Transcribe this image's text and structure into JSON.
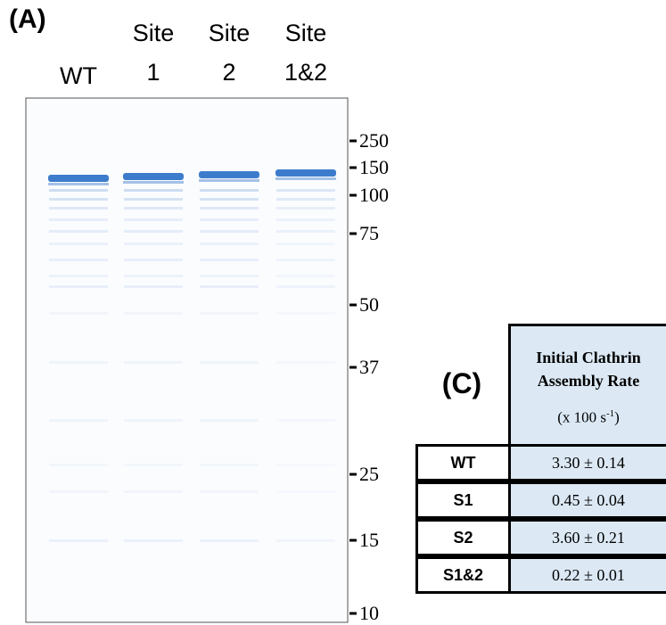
{
  "panel_a": {
    "label": "(A)",
    "lanes": [
      {
        "top": null,
        "bottom": "WT"
      },
      {
        "top": "Site",
        "bottom": "1"
      },
      {
        "top": "Site",
        "bottom": "2"
      },
      {
        "top": "Site",
        "bottom": "1&2"
      }
    ],
    "markers": [
      "250",
      "150",
      "100",
      "75",
      "50",
      "37",
      "25",
      "15",
      "10"
    ]
  },
  "panel_c": {
    "label": "(C)",
    "header": "Initial Clathrin Assembly Rate",
    "unit_prefix": "(x 100 s",
    "unit_exp": "-1",
    "unit_suffix": ")",
    "rows": [
      [
        "WT",
        "3.30 ± 0.14"
      ],
      [
        "S1",
        "0.45 ± 0.04"
      ],
      [
        "S2",
        "3.60 ± 0.21"
      ],
      [
        "S1&2",
        "0.22 ± 0.01"
      ]
    ]
  }
}
